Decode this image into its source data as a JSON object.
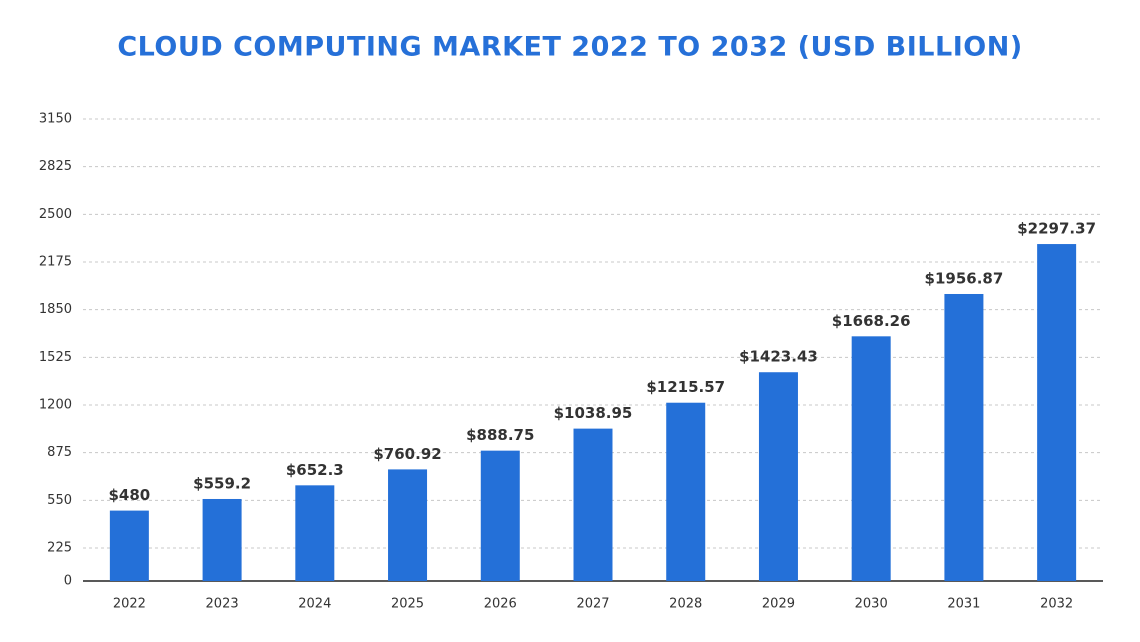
{
  "chart_data": {
    "type": "bar",
    "title": "CLOUD COMPUTING MARKET 2022 TO 2032 (USD BILLION)",
    "categories": [
      "2022",
      "2023",
      "2024",
      "2025",
      "2026",
      "2027",
      "2028",
      "2029",
      "2030",
      "2031",
      "2032"
    ],
    "values": [
      480,
      559.2,
      652.3,
      760.92,
      888.75,
      1038.95,
      1215.57,
      1423.43,
      1668.26,
      1956.87,
      2297.37
    ],
    "value_labels": [
      "$480",
      "$559.2",
      "$652.3",
      "$760.92",
      "$888.75",
      "$1038.95",
      "$1215.57",
      "$1423.43",
      "$1668.26",
      "$1956.87",
      "$2297.37"
    ],
    "color": "#2470d8",
    "ylim": [
      0,
      3150
    ],
    "yticks": [
      0,
      225,
      550,
      875,
      1200,
      1525,
      1850,
      2175,
      2500,
      2825,
      3150
    ],
    "grid": true
  }
}
